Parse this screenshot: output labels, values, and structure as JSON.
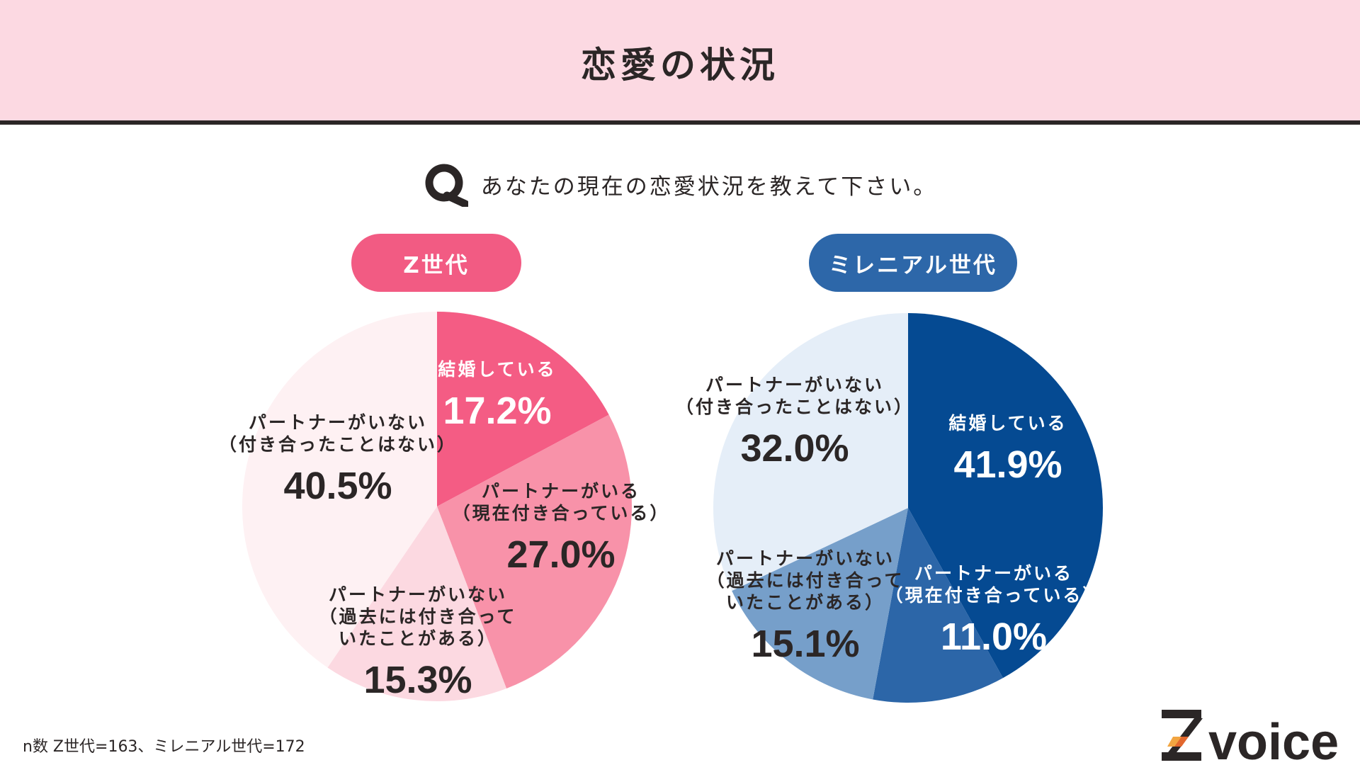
{
  "header": {
    "title": "恋愛の状況"
  },
  "question": {
    "icon": "q-icon",
    "text": "あなたの現在の恋愛状況を教えて下さい。"
  },
  "colors": {
    "header_bg": "#fcd9e2",
    "z_accent": "#f25b83",
    "m_accent": "#2d67a9"
  },
  "chart_data": [
    {
      "type": "pie",
      "title": "Z世代",
      "slices": [
        {
          "label": [
            "結婚している"
          ],
          "value": 17.2,
          "display": "17.2%",
          "color": "#f45c84",
          "text_color": "#ffffff"
        },
        {
          "label": [
            "パートナーがいる",
            "（現在付き合っている）"
          ],
          "value": 27.0,
          "display": "27.0%",
          "color": "#f892a9",
          "text_color": "#2b2626"
        },
        {
          "label": [
            "パートナーがいない",
            "（過去には付き合って",
            "いたことがある）"
          ],
          "value": 15.3,
          "display": "15.3%",
          "color": "#fcd9e1",
          "text_color": "#2b2626"
        },
        {
          "label": [
            "パートナーがいない",
            "（付き合ったことはない）"
          ],
          "value": 40.5,
          "display": "40.5%",
          "color": "#fef1f3",
          "text_color": "#2b2626"
        }
      ]
    },
    {
      "type": "pie",
      "title": "ミレニアル世代",
      "slices": [
        {
          "label": [
            "結婚している"
          ],
          "value": 41.9,
          "display": "41.9%",
          "color": "#054a92",
          "text_color": "#ffffff"
        },
        {
          "label": [
            "パートナーがいる",
            "（現在付き合っている）"
          ],
          "value": 11.0,
          "display": "11.0%",
          "color": "#2c66a8",
          "text_color": "#ffffff"
        },
        {
          "label": [
            "パートナーがいない",
            "（過去には付き合って",
            "いたことがある）"
          ],
          "value": 15.1,
          "display": "15.1%",
          "color": "#769fca",
          "text_color": "#2b2626"
        },
        {
          "label": [
            "パートナーがいない",
            "（付き合ったことはない）"
          ],
          "value": 32.0,
          "display": "32.0%",
          "color": "#e5eef8",
          "text_color": "#2b2626"
        }
      ]
    }
  ],
  "footnote": "n数 Z世代=163、ミレニアル世代=172",
  "logo": {
    "text": "voice",
    "icon": "z-logo-icon"
  }
}
